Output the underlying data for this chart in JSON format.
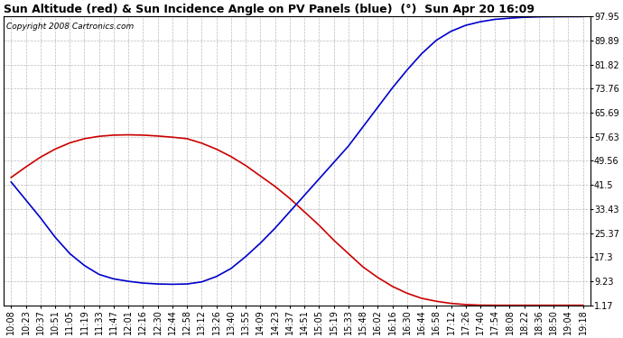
{
  "title": "Sun Altitude (red) & Sun Incidence Angle on PV Panels (blue)  (°)  Sun Apr 20 16:09",
  "copyright_text": "Copyright 2008 Cartronics.com",
  "yticks": [
    1.17,
    9.23,
    17.3,
    25.37,
    33.43,
    41.5,
    49.56,
    57.63,
    65.69,
    73.76,
    81.82,
    89.89,
    97.95
  ],
  "ylim": [
    1.17,
    97.95
  ],
  "bg_color": "#ffffff",
  "plot_bg_color": "#ffffff",
  "grid_color": "#aaaaaa",
  "red_color": "#cc0000",
  "blue_color": "#0000cc",
  "title_fontsize": 9,
  "copyright_fontsize": 6.5,
  "tick_fontsize": 7,
  "xtick_labels": [
    "10:08",
    "10:23",
    "10:37",
    "10:51",
    "11:05",
    "11:19",
    "11:33",
    "11:47",
    "12:01",
    "12:16",
    "12:30",
    "12:44",
    "12:58",
    "13:12",
    "13:26",
    "13:40",
    "13:55",
    "14:09",
    "14:23",
    "14:37",
    "14:51",
    "15:05",
    "15:19",
    "15:33",
    "15:48",
    "16:02",
    "16:16",
    "16:30",
    "16:44",
    "16:58",
    "17:12",
    "17:26",
    "17:40",
    "17:54",
    "18:08",
    "18:22",
    "18:36",
    "18:50",
    "19:04",
    "19:18"
  ],
  "red_values": [
    44.0,
    47.5,
    50.8,
    53.5,
    55.6,
    57.0,
    57.8,
    58.2,
    58.3,
    58.2,
    57.9,
    57.5,
    57.0,
    55.5,
    53.5,
    51.0,
    48.0,
    44.5,
    41.0,
    37.0,
    32.5,
    28.0,
    23.0,
    18.5,
    14.0,
    10.5,
    7.5,
    5.2,
    3.5,
    2.5,
    1.8,
    1.4,
    1.2,
    1.17,
    1.17,
    1.17,
    1.17,
    1.17,
    1.17,
    1.17
  ],
  "blue_values": [
    42.5,
    36.5,
    30.5,
    24.0,
    18.5,
    14.5,
    11.5,
    10.0,
    9.2,
    8.6,
    8.3,
    8.2,
    8.3,
    9.0,
    10.8,
    13.5,
    17.5,
    22.0,
    27.0,
    32.5,
    38.0,
    43.5,
    49.0,
    54.5,
    61.0,
    67.5,
    74.0,
    80.0,
    85.5,
    90.0,
    93.0,
    95.0,
    96.2,
    97.0,
    97.4,
    97.7,
    97.85,
    97.9,
    97.93,
    97.95
  ]
}
